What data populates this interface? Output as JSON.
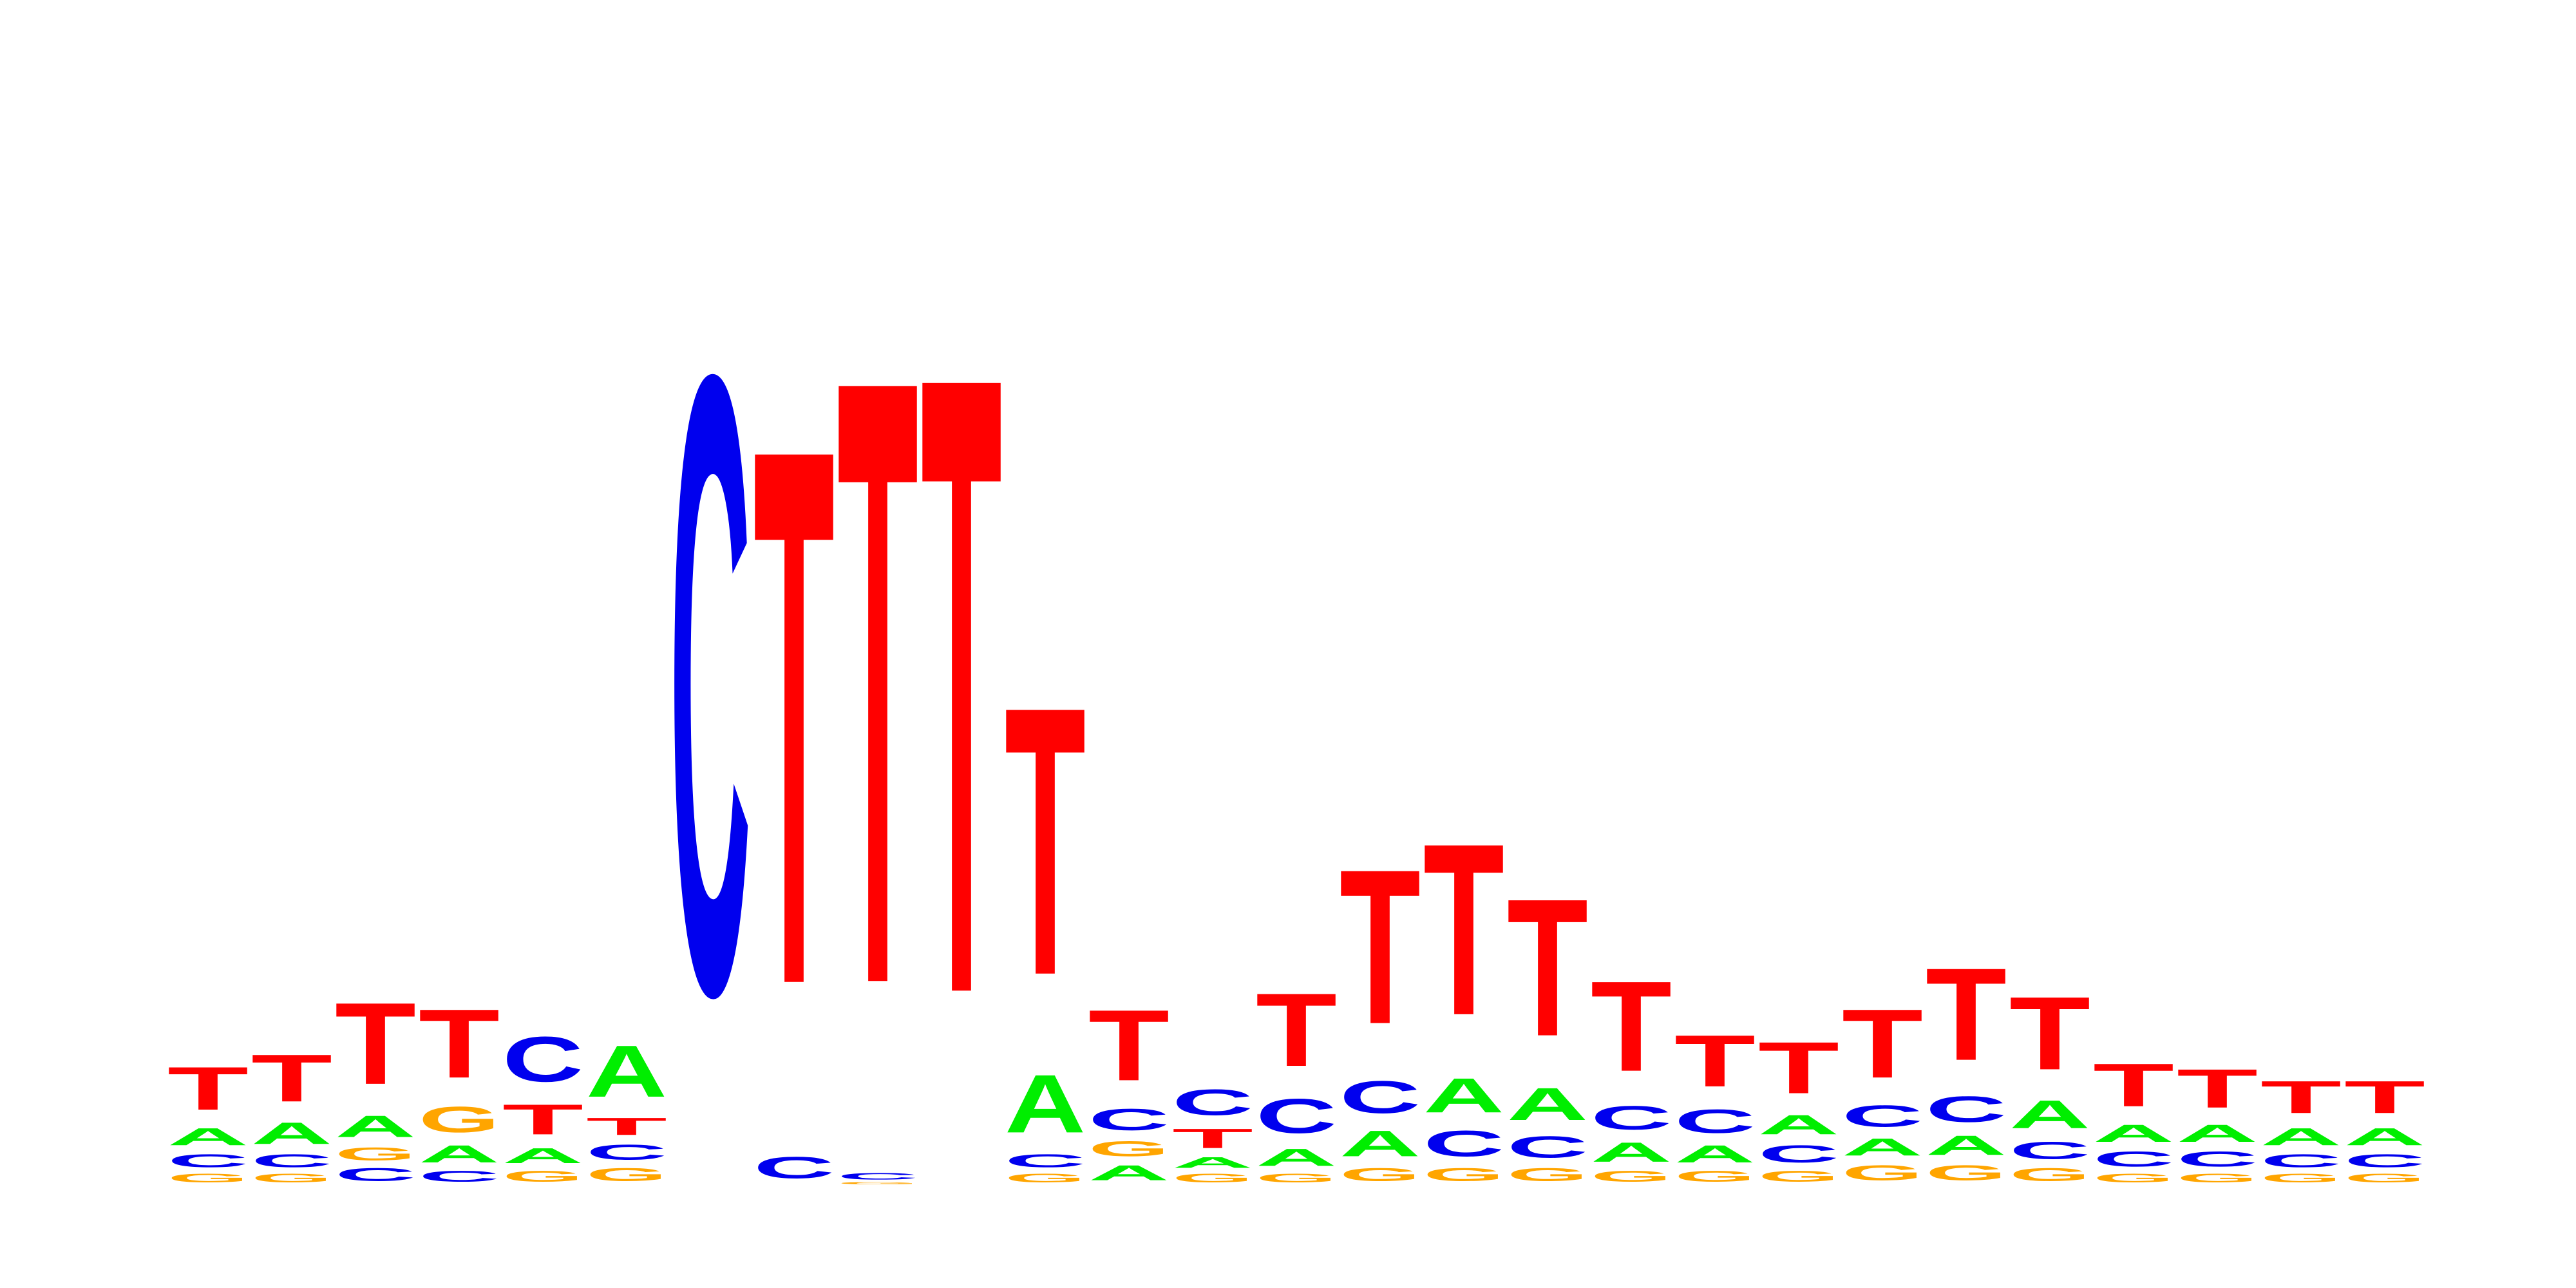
{
  "chart_data": {
    "type": "sequence-logo",
    "alphabet": [
      "A",
      "C",
      "G",
      "T"
    ],
    "colors": {
      "A": "#00ee00",
      "C": "#0000ee",
      "G": "#ffa500",
      "T": "#ff0000"
    },
    "ylim": [
      0,
      1
    ],
    "positions": [
      {
        "A": 0.08,
        "C": 0.06,
        "G": 0.04,
        "T": 0.2
      },
      {
        "A": 0.1,
        "C": 0.06,
        "G": 0.04,
        "T": 0.22
      },
      {
        "A": 0.1,
        "C": 0.06,
        "G": 0.06,
        "T": 0.38
      },
      {
        "A": 0.08,
        "C": 0.05,
        "G": 0.12,
        "T": 0.32
      },
      {
        "A": 0.07,
        "C": 0.21,
        "G": 0.05,
        "T": 0.14
      },
      {
        "A": 0.24,
        "C": 0.07,
        "G": 0.06,
        "T": 0.08
      },
      {
        "A": 0.0,
        "C": 2.88,
        "G": 0.0,
        "T": 0.0
      },
      {
        "A": 0.0,
        "C": 0.1,
        "G": 0.0,
        "T": 2.5
      },
      {
        "A": 0.0,
        "C": 0.03,
        "G": 0.01,
        "T": 2.82
      },
      {
        "A": 0.0,
        "C": 0.0,
        "G": 0.0,
        "T": 2.88
      },
      {
        "A": 0.27,
        "C": 0.06,
        "G": 0.04,
        "T": 1.25
      },
      {
        "A": 0.07,
        "C": 0.1,
        "G": 0.07,
        "T": 0.33
      },
      {
        "A": 0.05,
        "C": 0.12,
        "G": 0.04,
        "T": 0.09
      },
      {
        "A": 0.08,
        "C": 0.16,
        "G": 0.04,
        "T": 0.34
      },
      {
        "A": 0.12,
        "C": 0.15,
        "G": 0.06,
        "T": 0.72
      },
      {
        "A": 0.16,
        "C": 0.12,
        "G": 0.06,
        "T": 0.8
      },
      {
        "A": 0.15,
        "C": 0.1,
        "G": 0.06,
        "T": 0.64
      },
      {
        "A": 0.09,
        "C": 0.11,
        "G": 0.05,
        "T": 0.42
      },
      {
        "A": 0.08,
        "C": 0.11,
        "G": 0.05,
        "T": 0.24
      },
      {
        "A": 0.09,
        "C": 0.08,
        "G": 0.05,
        "T": 0.24
      },
      {
        "A": 0.08,
        "C": 0.1,
        "G": 0.07,
        "T": 0.32
      },
      {
        "A": 0.09,
        "C": 0.12,
        "G": 0.07,
        "T": 0.43
      },
      {
        "A": 0.13,
        "C": 0.08,
        "G": 0.06,
        "T": 0.34
      },
      {
        "A": 0.08,
        "C": 0.07,
        "G": 0.04,
        "T": 0.2
      },
      {
        "A": 0.08,
        "C": 0.07,
        "G": 0.04,
        "T": 0.18
      },
      {
        "A": 0.08,
        "C": 0.06,
        "G": 0.04,
        "T": 0.15
      },
      {
        "A": 0.08,
        "C": 0.06,
        "G": 0.04,
        "T": 0.15
      }
    ]
  }
}
